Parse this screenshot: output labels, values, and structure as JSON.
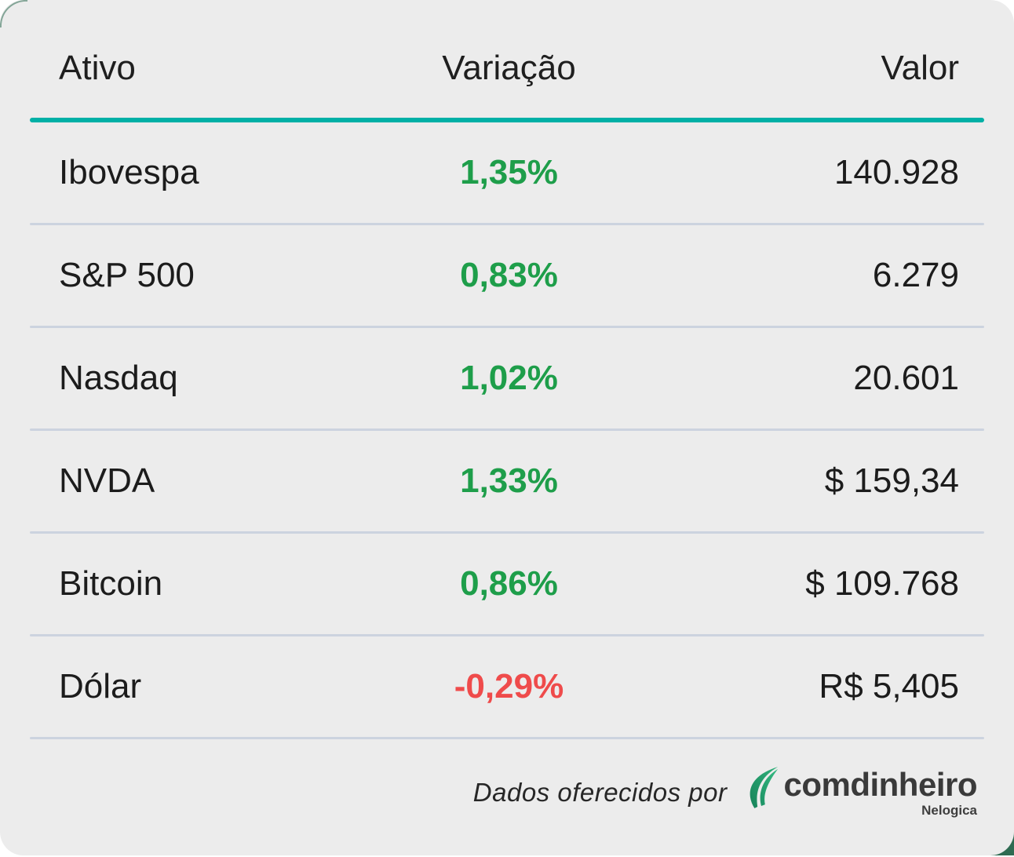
{
  "chart_data": {
    "type": "table",
    "title": "",
    "columns": [
      "Ativo",
      "Variação",
      "Valor"
    ],
    "rows": [
      {
        "ativo": "Ibovespa",
        "variacao": "1,35%",
        "valor": "140.928",
        "direction": "up"
      },
      {
        "ativo": "S&P 500",
        "variacao": "0,83%",
        "valor": "6.279",
        "direction": "up"
      },
      {
        "ativo": "Nasdaq",
        "variacao": "1,02%",
        "valor": "20.601",
        "direction": "up"
      },
      {
        "ativo": "NVDA",
        "variacao": "1,33%",
        "valor": "$ 159,34",
        "direction": "up"
      },
      {
        "ativo": "Bitcoin",
        "variacao": "0,86%",
        "valor": "$ 109.768",
        "direction": "up"
      },
      {
        "ativo": "Dólar",
        "variacao": "-0,29%",
        "valor": "R$ 5,405",
        "direction": "down"
      }
    ]
  },
  "footer": {
    "attribution": "Dados oferecidos por",
    "brand": "comdinheiro",
    "brand_sub": "Nelogica",
    "leaf_icon": "leaf-swoosh-icon"
  },
  "colors": {
    "positive_green": "#1e9e4a",
    "negative_red": "#ef4b4b",
    "accent_teal": "#00b0a6",
    "card_background": "#ececec",
    "row_divider": "#ccd3df",
    "brand_green_dark": "#17835a",
    "brand_green_light": "#2fb27b",
    "corner_green": "#2e6b52"
  }
}
